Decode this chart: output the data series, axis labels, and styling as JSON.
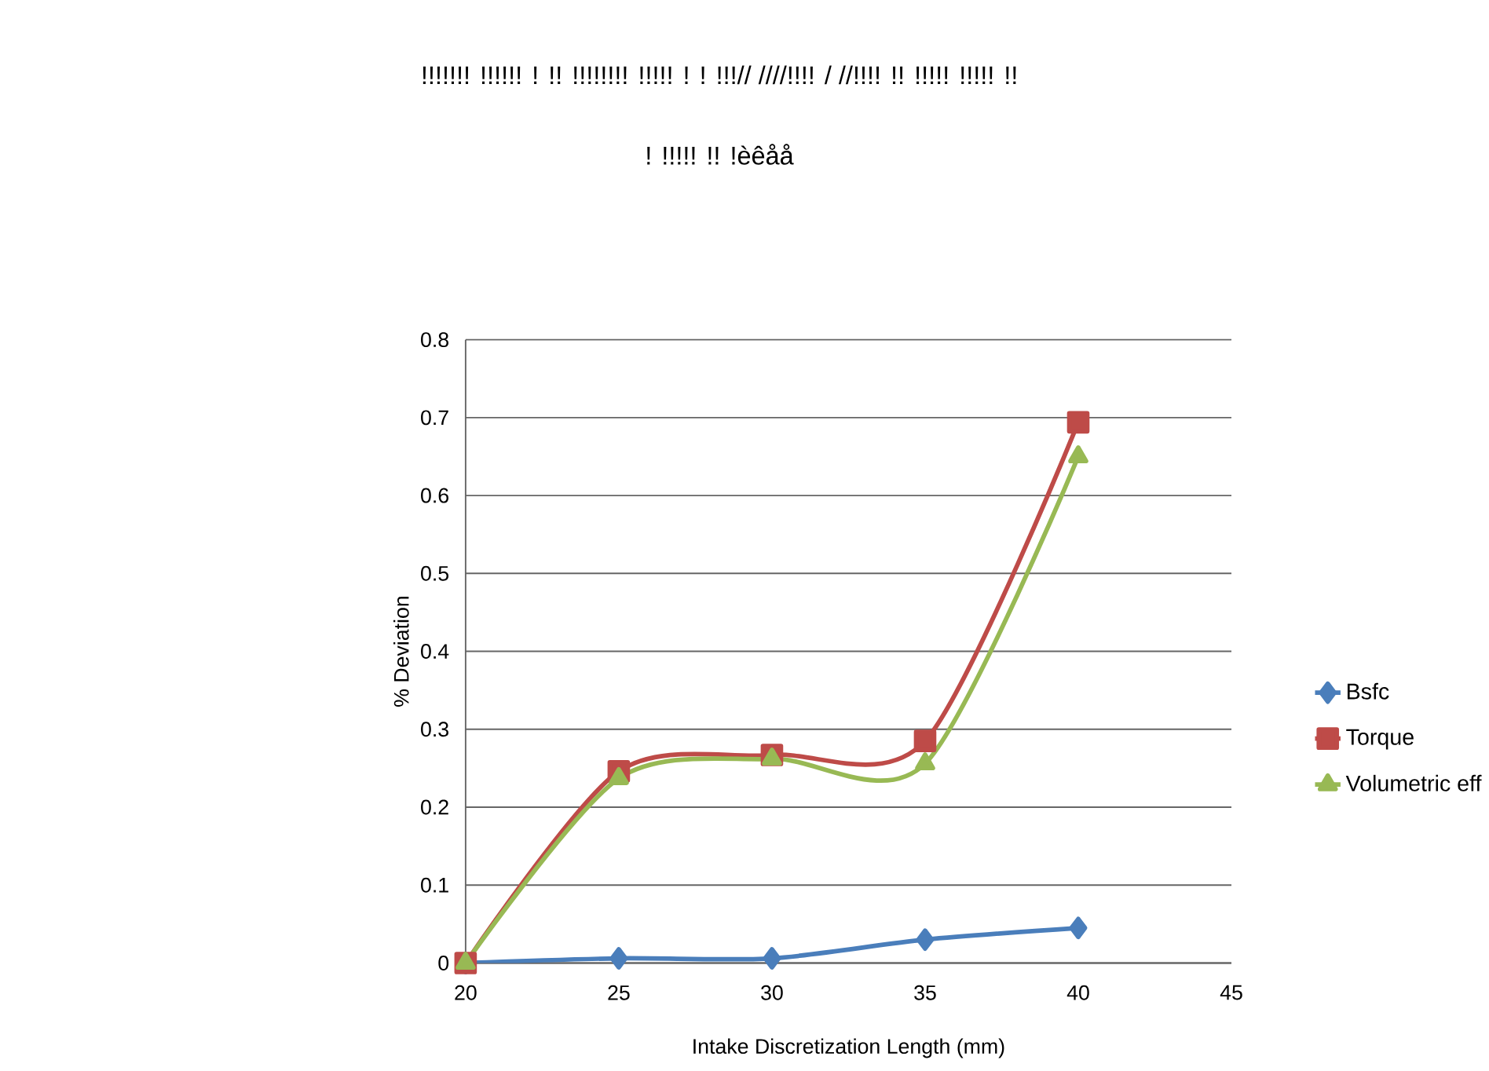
{
  "chart_data": {
    "type": "line",
    "title": "!!!!!!! !!!!!! ! !! !!!!!!!! !!!!! ! ! !!!// ////!!!! / //!!!! !! !!!!! !!!!! !!",
    "subtitle": "! !!!!! !! !èêåå",
    "xlabel": "Intake Discretization Length (mm)",
    "ylabel": "% Deviation",
    "x": [
      20,
      25,
      30,
      35,
      40
    ],
    "series": [
      {
        "name": "Bsfc",
        "color": "#4a7ebb",
        "marker": "diamond",
        "values": [
          0,
          0.006,
          0.006,
          0.03,
          0.045
        ]
      },
      {
        "name": "Torque",
        "color": "#be4b48",
        "marker": "square",
        "values": [
          0,
          0.246,
          0.267,
          0.285,
          0.694
        ]
      },
      {
        "name": "Volumetric eff",
        "color": "#98b954",
        "marker": "triangle",
        "values": [
          0,
          0.237,
          0.262,
          0.256,
          0.65
        ]
      }
    ],
    "xlim": [
      20,
      45
    ],
    "xticks": [
      20,
      25,
      30,
      35,
      40,
      45
    ],
    "ylim": [
      0,
      0.8
    ],
    "yticks": [
      0,
      0.1,
      0.2,
      0.3,
      0.4,
      0.5,
      0.6,
      0.7,
      0.8
    ],
    "grid": "y",
    "legend": "right",
    "line_style": "solid"
  }
}
